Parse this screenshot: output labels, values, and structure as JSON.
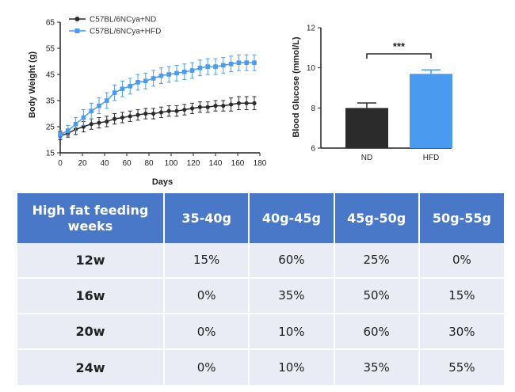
{
  "chart_data": [
    {
      "type": "line",
      "xlabel": "Days",
      "ylabel": "Body Weight (g)",
      "xlim": [
        0,
        180
      ],
      "ylim": [
        15,
        65
      ],
      "xticks": [
        "0",
        "20",
        "40",
        "60",
        "80",
        "100",
        "120",
        "140",
        "160",
        "180"
      ],
      "yticks": [
        "15",
        "25",
        "35",
        "45",
        "55",
        "65"
      ],
      "x": [
        0,
        7,
        14,
        21,
        28,
        35,
        42,
        49,
        56,
        63,
        70,
        77,
        84,
        91,
        98,
        105,
        112,
        119,
        126,
        133,
        140,
        147,
        154,
        161,
        168,
        175
      ],
      "series": [
        {
          "name": "C57BL/6NCya+ND",
          "color": "#2b2b2b",
          "values": [
            21.5,
            22.5,
            24,
            25,
            26,
            26.5,
            27,
            28,
            28.5,
            29,
            29.5,
            30,
            30,
            30.5,
            31,
            31,
            31.5,
            32,
            32.5,
            32.5,
            33,
            33,
            33.5,
            34,
            34,
            34
          ],
          "errors": [
            1.5,
            1.5,
            2,
            2,
            2,
            2,
            2,
            2,
            2,
            2,
            2,
            2,
            2,
            2,
            2,
            2,
            2,
            2,
            2,
            2,
            2,
            2,
            2.5,
            2.5,
            2.5,
            2.5
          ]
        },
        {
          "name": "C57BL/6NCya+HFD",
          "color": "#4a9bf0",
          "values": [
            22,
            23.5,
            26,
            28.5,
            31,
            33,
            35,
            38,
            39.5,
            40.5,
            42,
            42.5,
            43.5,
            44.5,
            45,
            45.5,
            46,
            46.5,
            47.5,
            48,
            48,
            48.5,
            49,
            49.5,
            49.5,
            49.5
          ],
          "errors": [
            1.5,
            2,
            2.5,
            3,
            3,
            3,
            3,
            3,
            3,
            3,
            3,
            3,
            3,
            3,
            3,
            3,
            3,
            3,
            3,
            3,
            3,
            3,
            3,
            3,
            3,
            3
          ]
        }
      ]
    },
    {
      "type": "bar",
      "ylabel": "Blood Glucose (mmol/L)",
      "ylim": [
        6,
        12
      ],
      "yticks": [
        "6",
        "8",
        "10",
        "12"
      ],
      "categories": [
        "ND",
        "HFD"
      ],
      "values": [
        8.0,
        9.7
      ],
      "errors": [
        0.25,
        0.2
      ],
      "colors": [
        "#2b2b2b",
        "#4a9bf0"
      ],
      "significance": "***"
    }
  ],
  "table": {
    "headers": [
      "High fat feeding weeks",
      "35-40g",
      "40g-45g",
      "45g-50g",
      "50g-55g"
    ],
    "rows": [
      {
        "week": "12w",
        "cells": [
          "15%",
          "60%",
          "25%",
          "0%"
        ]
      },
      {
        "week": "16w",
        "cells": [
          "0%",
          "35%",
          "50%",
          "15%"
        ]
      },
      {
        "week": "20w",
        "cells": [
          "0%",
          "10%",
          "60%",
          "30%"
        ]
      },
      {
        "week": "24w",
        "cells": [
          "0%",
          "10%",
          "35%",
          "55%"
        ]
      }
    ]
  }
}
